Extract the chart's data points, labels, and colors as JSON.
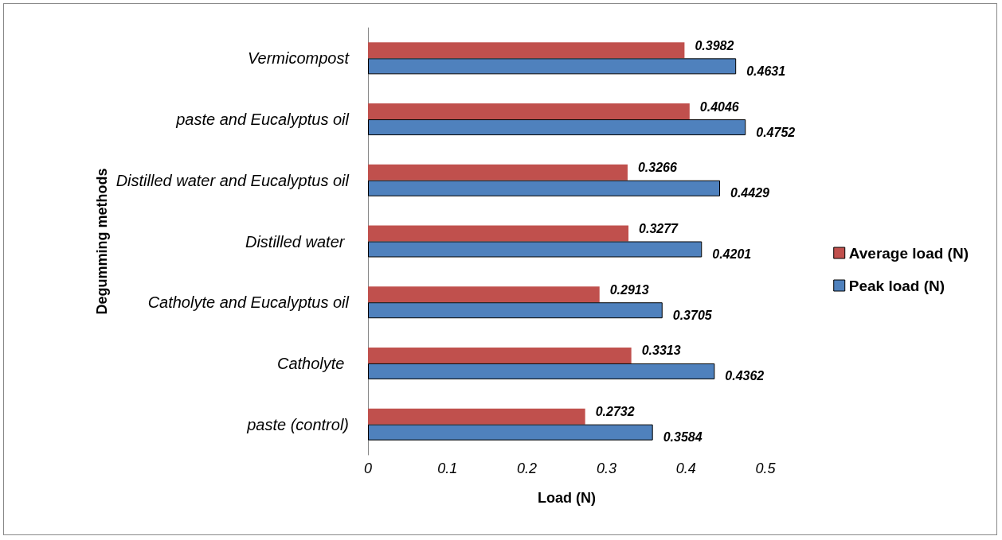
{
  "chart_data": {
    "type": "bar",
    "orientation": "horizontal",
    "xlabel": "Load (N)",
    "ylabel": "Degumming methods",
    "categories": [
      "Vermicompost",
      "paste and Eucalyptus oil",
      "Distilled water and Eucalyptus oil",
      "Distilled water ",
      "Catholyte and Eucalyptus oil",
      "Catholyte ",
      "paste (control)"
    ],
    "series": [
      {
        "name": "Average load (N)",
        "color": "#c0504d",
        "values": [
          0.3982,
          0.4046,
          0.3266,
          0.3277,
          0.2913,
          0.3313,
          0.2732
        ]
      },
      {
        "name": "Peak load (N)",
        "color": "#4f81bd",
        "values": [
          0.4631,
          0.4752,
          0.4429,
          0.4201,
          0.3705,
          0.4362,
          0.3584
        ]
      }
    ],
    "xlim": [
      0,
      0.5
    ],
    "xticks": [
      0,
      0.1,
      0.2,
      0.3,
      0.4,
      0.5
    ],
    "grid": false,
    "legend": "right",
    "data_labels": true
  }
}
